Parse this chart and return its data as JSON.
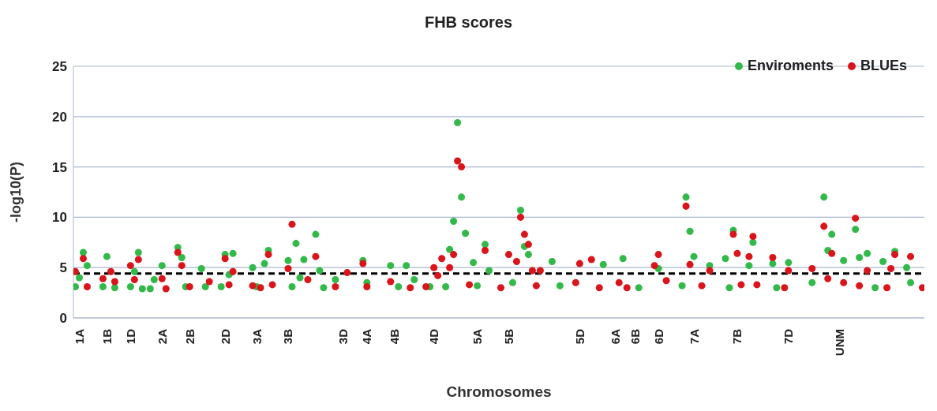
{
  "chart_data": {
    "type": "scatter",
    "title": "FHB scores",
    "xlabel": "Chromosomes",
    "ylabel": "-log10(P)",
    "categories": [
      null,
      "1A",
      null,
      null,
      null,
      null,
      null,
      null,
      "1B",
      null,
      null,
      null,
      null,
      null,
      "1D",
      null,
      null,
      null,
      null,
      null,
      null,
      null,
      "2A",
      null,
      null,
      null,
      null,
      null,
      null,
      "2B",
      null,
      null,
      null,
      null,
      null,
      null,
      null,
      null,
      "2D",
      null,
      null,
      null,
      null,
      null,
      null,
      null,
      "3A",
      null,
      null,
      null,
      null,
      null,
      null,
      null,
      "3B",
      null,
      null,
      null,
      null,
      null,
      null,
      null,
      null,
      null,
      null,
      null,
      null,
      null,
      "3D",
      null,
      null,
      null,
      null,
      null,
      "4A",
      null,
      null,
      null,
      null,
      null,
      null,
      "4B",
      null,
      null,
      null,
      null,
      null,
      null,
      null,
      null,
      null,
      "4D",
      null,
      null,
      null,
      null,
      null,
      null,
      null,
      null,
      null,
      null,
      "5A",
      null,
      null,
      null,
      null,
      null,
      null,
      null,
      "5B",
      null,
      null,
      null,
      null,
      null,
      null,
      null,
      null,
      null,
      null,
      null,
      null,
      null,
      null,
      null,
      null,
      null,
      "5D",
      null,
      null,
      null,
      null,
      null,
      null,
      null,
      null,
      "6A",
      null,
      null,
      null,
      null,
      "6B",
      null,
      null,
      null,
      null,
      null,
      "6D",
      null,
      null,
      null,
      null,
      null,
      null,
      null,
      null,
      "7A",
      null,
      null,
      null,
      null,
      null,
      null,
      null,
      null,
      null,
      null,
      "7B",
      null,
      null,
      null,
      null,
      null,
      null,
      null,
      null,
      null,
      null,
      null,
      null,
      "7D",
      null,
      null,
      null,
      null,
      null,
      null,
      null,
      null,
      null,
      null,
      null,
      null,
      "UNM",
      null,
      null,
      null,
      null,
      null,
      null,
      null,
      null,
      null,
      null,
      null,
      null,
      null,
      null,
      null,
      null,
      null,
      null,
      null,
      null,
      null
    ],
    "ylim": [
      0,
      25
    ],
    "yticks": [
      0,
      5,
      10,
      15,
      20,
      25
    ],
    "grid": "y",
    "legend": "top right",
    "marker": "circle",
    "ref_lines": [
      {
        "axis": "y",
        "value": 4.4,
        "color": "#000000",
        "line_style": "dashed"
      }
    ],
    "series": [
      {
        "name": "Enviroments",
        "color": "#33b94a",
        "values": [
          3.1,
          4.0,
          6.5,
          5.2,
          null,
          null,
          null,
          3.1,
          6.1,
          null,
          3.0,
          null,
          null,
          null,
          3.1,
          4.6,
          6.5,
          2.9,
          null,
          2.9,
          3.8,
          null,
          5.2,
          null,
          null,
          null,
          7.0,
          6.0,
          3.1,
          null,
          null,
          null,
          4.9,
          3.1,
          null,
          null,
          null,
          3.1,
          6.3,
          4.3,
          6.4,
          null,
          null,
          null,
          null,
          5.0,
          3.1,
          null,
          5.4,
          6.7,
          null,
          null,
          null,
          null,
          5.7,
          3.1,
          7.4,
          4.0,
          5.8,
          null,
          null,
          8.3,
          4.7,
          3.0,
          null,
          null,
          3.8,
          null,
          null,
          null,
          null,
          null,
          null,
          5.7,
          3.5,
          null,
          null,
          null,
          null,
          null,
          5.2,
          null,
          3.1,
          null,
          5.2,
          null,
          3.8,
          null,
          null,
          null,
          3.1,
          null,
          null,
          null,
          3.1,
          6.8,
          9.6,
          19.4,
          12.0,
          8.4,
          null,
          5.5,
          3.2,
          null,
          7.3,
          4.7,
          null,
          null,
          null,
          null,
          null,
          3.5,
          null,
          10.7,
          7.1,
          6.3,
          null,
          null,
          null,
          null,
          null,
          5.6,
          null,
          3.2,
          null,
          null,
          null,
          null,
          null,
          null,
          null,
          null,
          null,
          null,
          5.3,
          null,
          null,
          null,
          null,
          5.9,
          null,
          null,
          null,
          3.0,
          null,
          null,
          null,
          null,
          4.9,
          null,
          null,
          null,
          null,
          null,
          3.2,
          12.0,
          8.6,
          6.1,
          null,
          null,
          null,
          5.2,
          null,
          null,
          null,
          5.9,
          3.0,
          8.7,
          null,
          null,
          null,
          5.2,
          7.5,
          null,
          null,
          null,
          null,
          5.4,
          3.0,
          null,
          null,
          5.5,
          null,
          null,
          null,
          null,
          null,
          3.5,
          null,
          null,
          12.0,
          6.7,
          8.3,
          null,
          null,
          5.7,
          null,
          null,
          8.8,
          6.0,
          null,
          6.4,
          null,
          3.0,
          null,
          5.6,
          null,
          null,
          6.6,
          null,
          null,
          5.0,
          3.5,
          null,
          null,
          null
        ]
      },
      {
        "name": "BLUEs",
        "color": "#d9151b",
        "values": [
          4.6,
          null,
          5.9,
          3.1,
          null,
          null,
          null,
          3.9,
          null,
          4.6,
          3.6,
          null,
          null,
          null,
          5.2,
          3.8,
          5.8,
          null,
          null,
          null,
          null,
          null,
          3.9,
          2.9,
          null,
          null,
          6.5,
          5.2,
          null,
          3.1,
          null,
          null,
          null,
          null,
          3.6,
          null,
          null,
          null,
          5.9,
          3.3,
          4.6,
          null,
          null,
          null,
          null,
          3.2,
          null,
          3.0,
          null,
          6.3,
          3.3,
          null,
          null,
          null,
          4.9,
          9.3,
          null,
          null,
          null,
          3.8,
          null,
          6.1,
          null,
          null,
          null,
          null,
          3.1,
          null,
          null,
          4.5,
          null,
          null,
          null,
          5.4,
          3.1,
          null,
          null,
          null,
          null,
          null,
          3.6,
          null,
          null,
          null,
          null,
          3.0,
          null,
          null,
          null,
          3.1,
          null,
          5.0,
          4.2,
          5.9,
          null,
          5.0,
          6.3,
          15.6,
          15.0,
          null,
          3.3,
          null,
          null,
          null,
          6.7,
          null,
          null,
          null,
          3.0,
          null,
          6.3,
          null,
          5.6,
          10.0,
          8.3,
          7.3,
          4.7,
          3.2,
          4.7,
          null,
          null,
          null,
          null,
          null,
          null,
          null,
          null,
          3.5,
          5.4,
          null,
          null,
          5.8,
          null,
          3.0,
          null,
          null,
          null,
          null,
          3.5,
          null,
          3.0,
          null,
          null,
          null,
          null,
          null,
          null,
          5.2,
          6.3,
          null,
          3.7,
          null,
          null,
          null,
          null,
          11.1,
          5.3,
          null,
          null,
          3.2,
          null,
          4.7,
          null,
          null,
          null,
          null,
          null,
          8.3,
          6.4,
          3.3,
          null,
          6.1,
          8.1,
          3.3,
          null,
          null,
          null,
          6.0,
          null,
          null,
          3.0,
          4.7,
          null,
          null,
          null,
          null,
          null,
          4.9,
          null,
          null,
          9.1,
          3.9,
          6.4,
          null,
          null,
          3.5,
          null,
          null,
          9.9,
          3.2,
          null,
          4.7,
          null,
          null,
          null,
          null,
          3.0,
          4.9,
          6.3,
          null,
          null,
          null,
          6.1,
          null,
          null,
          3.0
        ]
      }
    ]
  }
}
